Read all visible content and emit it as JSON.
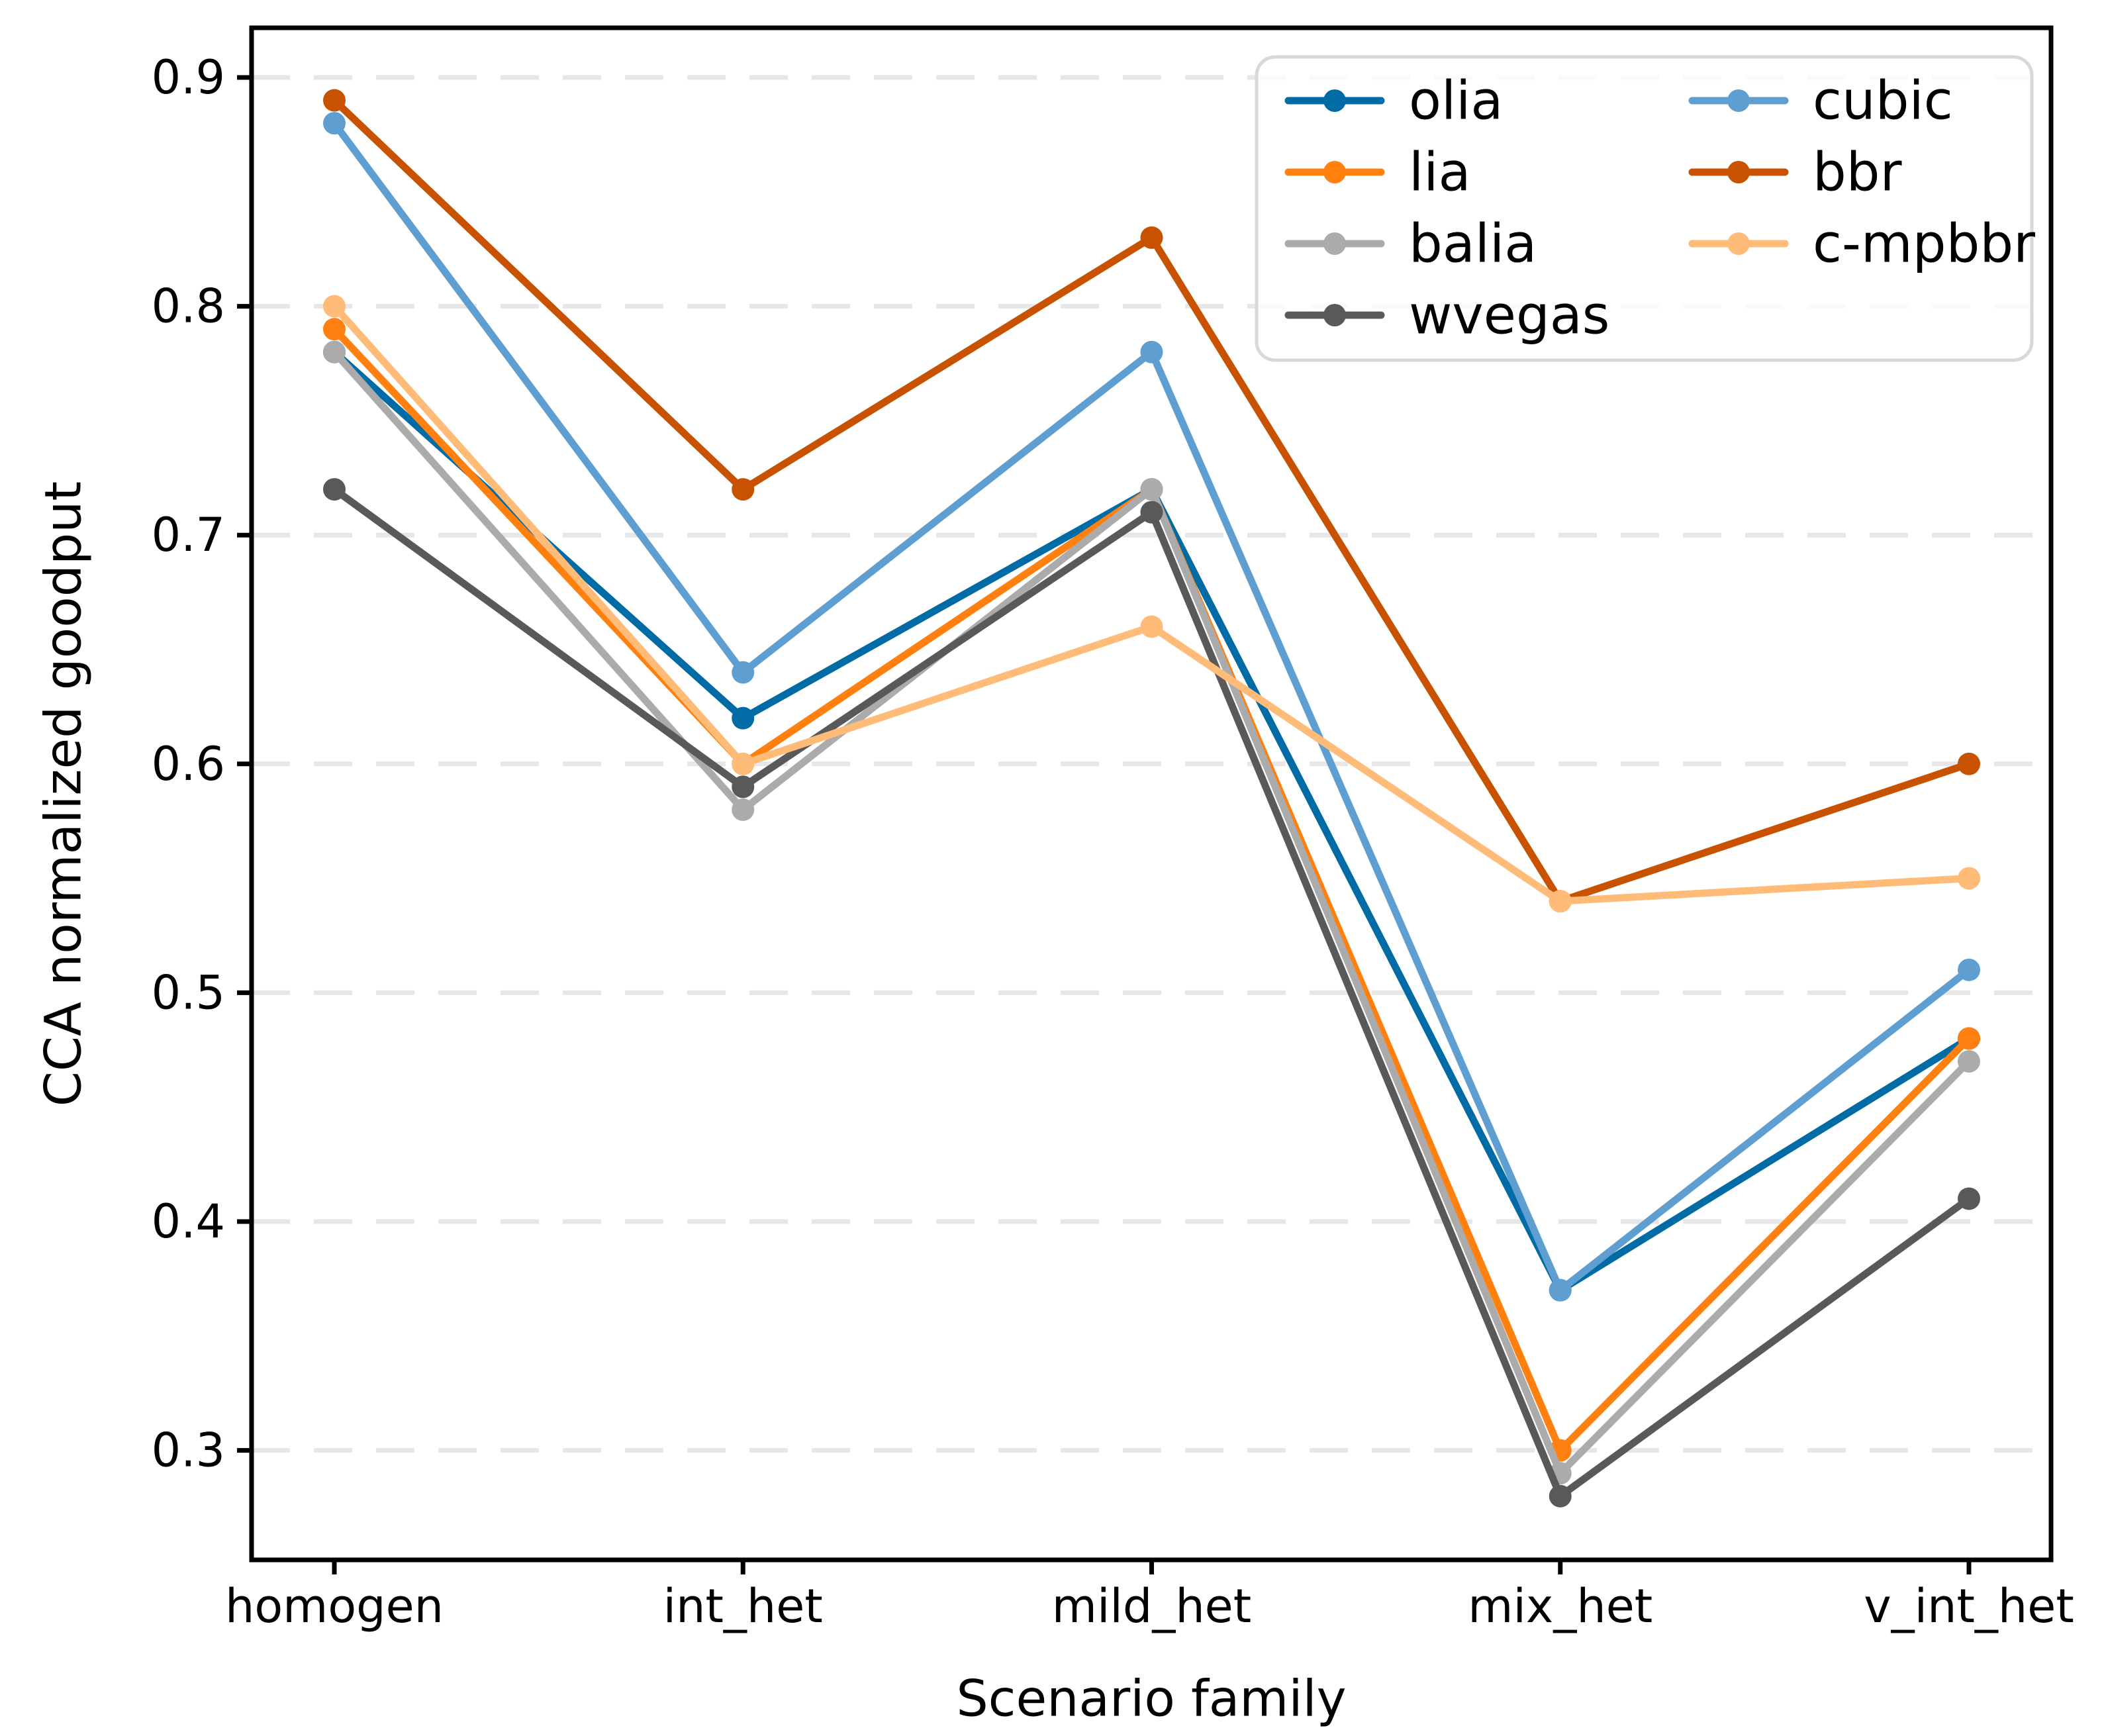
{
  "chart_data": {
    "type": "line",
    "title": "",
    "xlabel": "Scenario family",
    "ylabel": "CCA normalized goodput",
    "categories": [
      "homogen",
      "int_het",
      "mild_het",
      "mix_het",
      "v_int_het"
    ],
    "series": [
      {
        "name": "olia",
        "color": "#006BA4",
        "values": [
          0.78,
          0.62,
          0.72,
          0.37,
          0.48
        ]
      },
      {
        "name": "lia",
        "color": "#FF800E",
        "values": [
          0.79,
          0.6,
          0.72,
          0.3,
          0.48
        ]
      },
      {
        "name": "balia",
        "color": "#ABABAB",
        "values": [
          0.78,
          0.58,
          0.72,
          0.29,
          0.47
        ]
      },
      {
        "name": "wvegas",
        "color": "#595959",
        "values": [
          0.72,
          0.59,
          0.71,
          0.28,
          0.41
        ]
      },
      {
        "name": "cubic",
        "color": "#5F9ED1",
        "values": [
          0.88,
          0.64,
          0.78,
          0.37,
          0.51
        ]
      },
      {
        "name": "bbr",
        "color": "#C85200",
        "values": [
          0.89,
          0.72,
          0.83,
          0.54,
          0.6
        ]
      },
      {
        "name": "c-mpbbr",
        "color": "#FFBC79",
        "values": [
          0.8,
          0.6,
          0.66,
          0.54,
          0.55
        ]
      }
    ],
    "yticks": [
      "0.3",
      "0.4",
      "0.5",
      "0.6",
      "0.7",
      "0.8",
      "0.9"
    ],
    "ylim": [
      0.2523,
      0.9217
    ],
    "grid": "horizontal-dashed",
    "gridline_color": "#E7E7E7",
    "legend_position": "upper-right",
    "legend_columns": 2,
    "legend_column1": [
      "olia",
      "lia",
      "balia",
      "wvegas"
    ],
    "legend_column2": [
      "cubic",
      "bbr",
      "c-mpbbr"
    ]
  }
}
